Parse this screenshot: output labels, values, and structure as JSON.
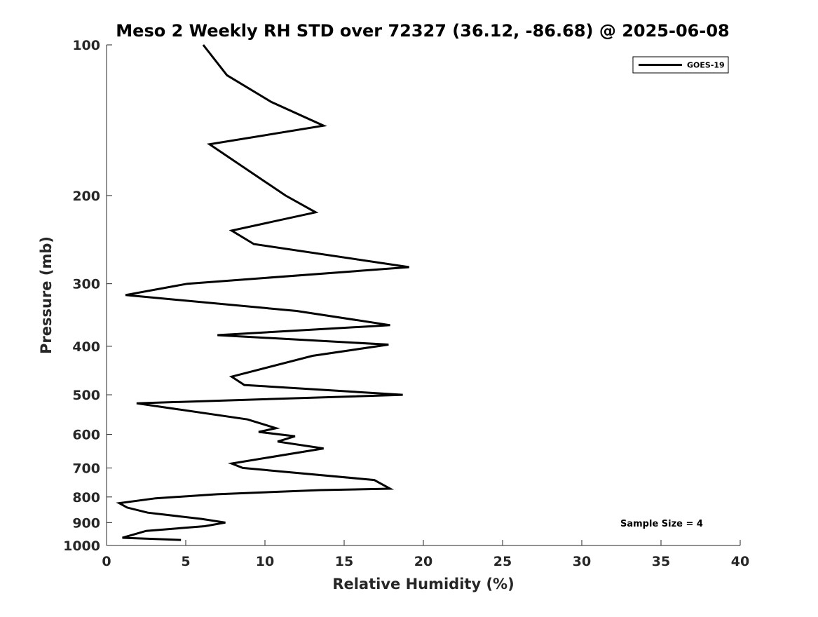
{
  "chart_data": {
    "type": "line",
    "title": "Meso 2 Weekly RH STD over 72327 (36.12, -86.68) @ 2025-06-08",
    "xlabel": "Relative Humidity (%)",
    "ylabel": "Pressure (mb)",
    "xlim": [
      0,
      40
    ],
    "ylim": [
      1000,
      100
    ],
    "y_scale": "log",
    "xticks": [
      0,
      5,
      10,
      15,
      20,
      25,
      30,
      35,
      40
    ],
    "yticks": [
      100,
      200,
      300,
      400,
      500,
      600,
      700,
      800,
      900,
      1000
    ],
    "grid": false,
    "legend": {
      "position": "top-right",
      "entries": [
        "GOES-19"
      ]
    },
    "annotation": "Sample Size = 4",
    "series": [
      {
        "name": "GOES-19",
        "color": "#000000",
        "x": [
          6.1,
          7.6,
          10.4,
          13.7,
          6.5,
          11.3,
          13.2,
          7.9,
          9.3,
          19.1,
          5.1,
          1.2,
          12.0,
          17.9,
          7.0,
          17.8,
          13.0,
          7.9,
          8.7,
          18.7,
          1.9,
          8.9,
          10.7,
          9.6,
          11.9,
          10.8,
          13.7,
          7.9,
          8.6,
          16.9,
          17.9,
          13.5,
          7.0,
          3.1,
          0.8,
          1.3,
          2.6,
          6.0,
          7.5,
          6.2,
          2.5,
          1.0,
          4.7
        ],
        "y": [
          100,
          115,
          130,
          145,
          158,
          200,
          216,
          235,
          250,
          278,
          300,
          316,
          340,
          363,
          380,
          397,
          418,
          460,
          478,
          500,
          520,
          560,
          583,
          593,
          605,
          620,
          640,
          686,
          700,
          740,
          770,
          775,
          790,
          805,
          823,
          840,
          860,
          885,
          900,
          915,
          935,
          965,
          975
        ]
      }
    ]
  }
}
